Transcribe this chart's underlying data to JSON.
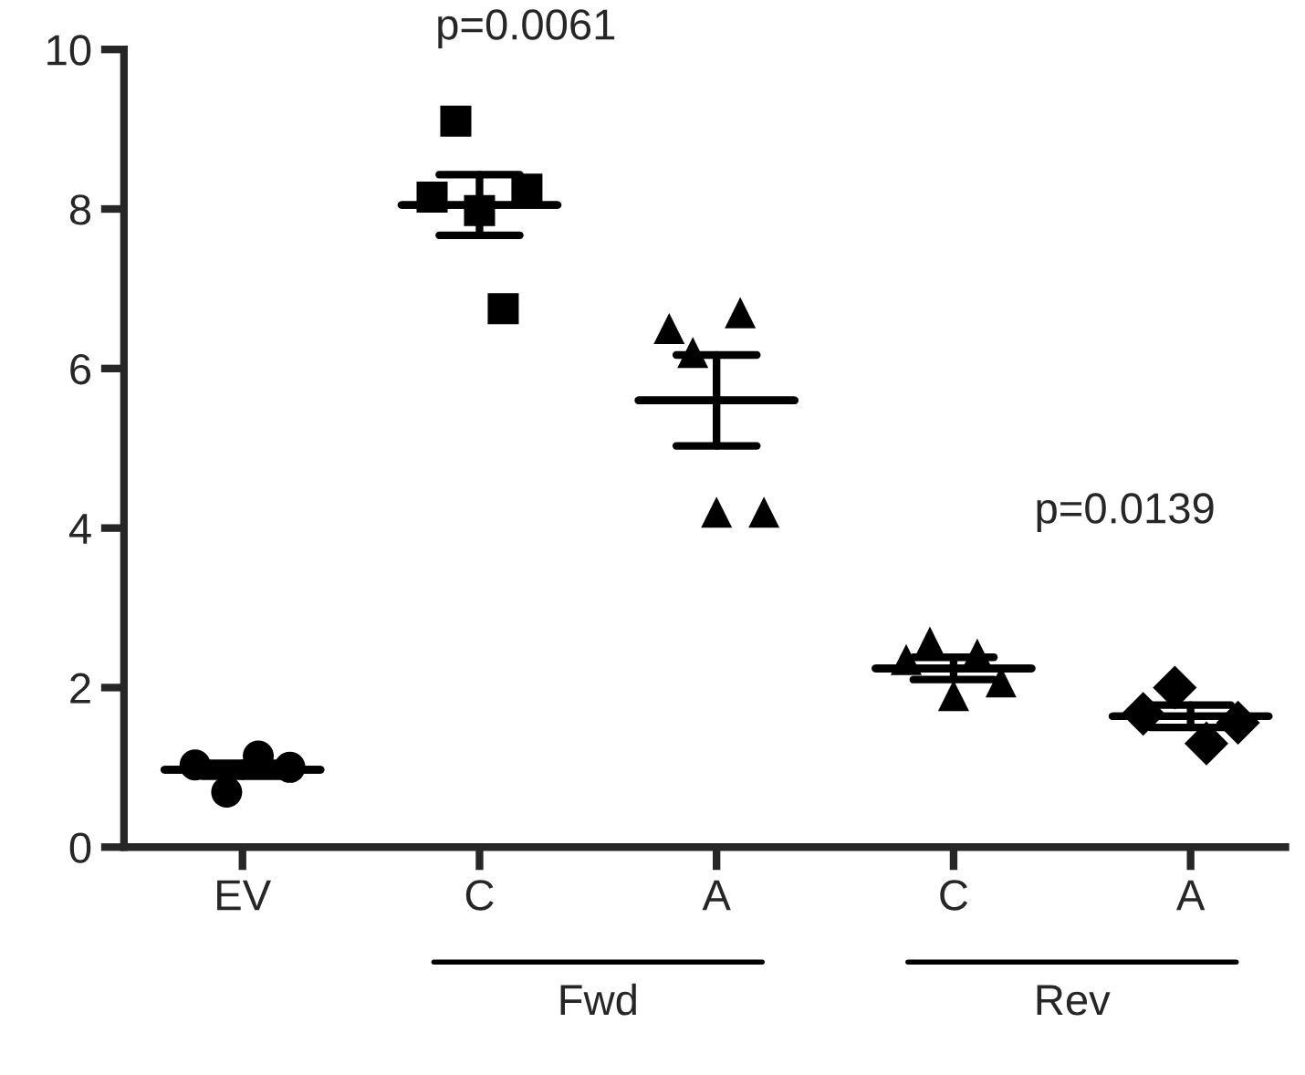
{
  "chart_data": {
    "type": "scatter",
    "categories": [
      "EV",
      "C",
      "A",
      "C",
      "A"
    ],
    "ylim": [
      0,
      10
    ],
    "yticks": [
      0,
      2,
      4,
      6,
      8,
      10
    ],
    "grid": false,
    "legend": false,
    "series": [
      {
        "marker": "circle",
        "color": "#000000",
        "values": [
          1.03,
          null,
          null,
          null,
          null
        ]
      },
      {
        "marker": "circle",
        "color": "#000000",
        "values": [
          0.69,
          null,
          null,
          null,
          null
        ]
      },
      {
        "marker": "circle",
        "color": "#000000",
        "values": [
          1.14,
          null,
          null,
          null,
          null
        ]
      },
      {
        "marker": "circle",
        "color": "#000000",
        "values": [
          1.0,
          null,
          null,
          null,
          null
        ]
      },
      {
        "marker": "square",
        "color": "#000000",
        "values": [
          null,
          8.15,
          null,
          null,
          null
        ]
      },
      {
        "marker": "square",
        "color": "#000000",
        "values": [
          null,
          9.1,
          null,
          null,
          null
        ]
      },
      {
        "marker": "square",
        "color": "#000000",
        "values": [
          null,
          7.98,
          null,
          null,
          null
        ]
      },
      {
        "marker": "square",
        "color": "#000000",
        "values": [
          null,
          6.75,
          null,
          null,
          null
        ]
      },
      {
        "marker": "square",
        "color": "#000000",
        "values": [
          null,
          8.25,
          null,
          null,
          null
        ]
      },
      {
        "marker": "triangle",
        "color": "#000000",
        "values": [
          null,
          null,
          6.5,
          null,
          null
        ]
      },
      {
        "marker": "triangle",
        "color": "#000000",
        "values": [
          null,
          null,
          6.2,
          null,
          null
        ]
      },
      {
        "marker": "triangle",
        "color": "#000000",
        "values": [
          null,
          null,
          4.2,
          null,
          null
        ]
      },
      {
        "marker": "triangle",
        "color": "#000000",
        "values": [
          null,
          null,
          6.7,
          null,
          null
        ]
      },
      {
        "marker": "triangle",
        "color": "#000000",
        "values": [
          null,
          null,
          4.2,
          null,
          null
        ]
      },
      {
        "marker": "triangle",
        "color": "#000000",
        "values": [
          null,
          null,
          null,
          2.35,
          null
        ]
      },
      {
        "marker": "triangle",
        "color": "#000000",
        "values": [
          null,
          null,
          null,
          2.57,
          null
        ]
      },
      {
        "marker": "triangle",
        "color": "#000000",
        "values": [
          null,
          null,
          null,
          1.9,
          null
        ]
      },
      {
        "marker": "triangle",
        "color": "#000000",
        "values": [
          null,
          null,
          null,
          2.42,
          null
        ]
      },
      {
        "marker": "triangle",
        "color": "#000000",
        "values": [
          null,
          null,
          null,
          2.07,
          null
        ]
      },
      {
        "marker": "diamond",
        "color": "#000000",
        "values": [
          null,
          null,
          null,
          null,
          1.67
        ]
      },
      {
        "marker": "diamond",
        "color": "#000000",
        "values": [
          null,
          null,
          null,
          null,
          2.0
        ]
      },
      {
        "marker": "diamond",
        "color": "#000000",
        "values": [
          null,
          null,
          null,
          null,
          1.3
        ]
      },
      {
        "marker": "diamond",
        "color": "#000000",
        "values": [
          null,
          null,
          null,
          null,
          1.56
        ]
      },
      {
        "type": "box",
        "color": "#000000",
        "boxes": [
          {
            "low": 0.89,
            "q1": 0.97,
            "median": 0.97,
            "q3": 0.97,
            "high": 1.05
          },
          {
            "low": 7.67,
            "q1": 8.05,
            "median": 8.05,
            "q3": 8.05,
            "high": 8.43
          },
          {
            "low": 5.03,
            "q1": 5.6,
            "median": 5.6,
            "q3": 5.6,
            "high": 6.17
          },
          {
            "low": 2.1,
            "q1": 2.24,
            "median": 2.24,
            "q3": 2.24,
            "high": 2.38
          },
          {
            "low": 1.5,
            "q1": 1.64,
            "median": 1.64,
            "q3": 1.64,
            "high": 1.78
          }
        ]
      }
    ],
    "annotations": [
      "p=0.0061",
      "p=0.0139",
      "Fwd",
      "Rev"
    ]
  }
}
